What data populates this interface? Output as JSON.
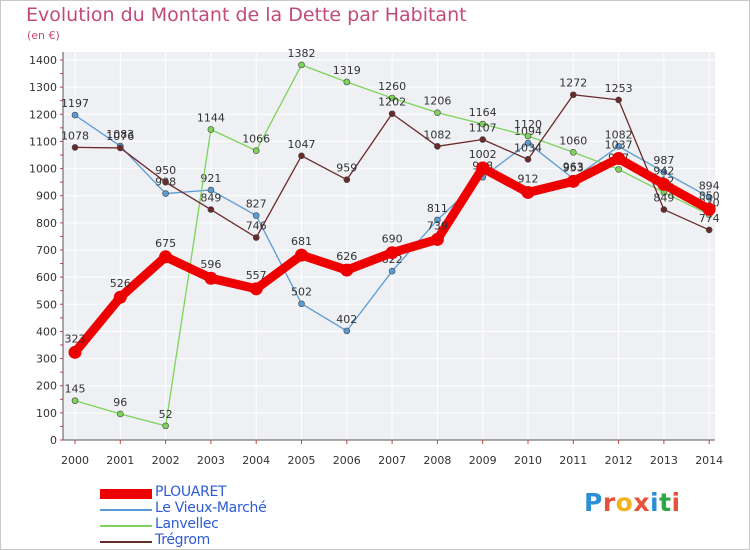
{
  "title": "Evolution du Montant de la Dette par Habitant",
  "unit_label": "(en €)",
  "logo": {
    "text": "Proxiti",
    "letter_colors": [
      "#2c8fd6",
      "#e8523a",
      "#f2b21c",
      "#e8523a",
      "#2c8fd6",
      "#2fa843",
      "#e8523a"
    ]
  },
  "chart_data": {
    "type": "line",
    "title": "Evolution du Montant de la Dette par Habitant",
    "ylabel": "(en €)",
    "xlabel": "",
    "x": [
      "2000",
      "2001",
      "2002",
      "2003",
      "2004",
      "2005",
      "2006",
      "2007",
      "2008",
      "2009",
      "2010",
      "2011",
      "2012",
      "2013",
      "2014"
    ],
    "ylim": [
      0,
      1400
    ],
    "yticks": [
      0,
      100,
      200,
      300,
      400,
      500,
      600,
      700,
      800,
      900,
      1000,
      1100,
      1200,
      1300,
      1400
    ],
    "grid": true,
    "legend_position": "bottom-left",
    "series": [
      {
        "name": "Le Vieux-Marché",
        "color": "#5b9bd5",
        "values": [
          1197,
          1083,
          908,
          921,
          827,
          502,
          402,
          622,
          811,
          968,
          1094,
          963,
          1082,
          987,
          894
        ]
      },
      {
        "name": "Lanvellec",
        "color": "#7ed35a",
        "values": [
          145,
          96,
          52,
          1144,
          1066,
          1382,
          1319,
          1260,
          1206,
          1164,
          1120,
          1060,
          997,
          912,
          830
        ]
      },
      {
        "name": "Trégrom",
        "color": "#6b2a2a",
        "values": [
          1078,
          1076,
          950,
          849,
          746,
          1047,
          959,
          1202,
          1082,
          1107,
          1034,
          1272,
          1253,
          849,
          774
        ]
      },
      {
        "name": "PLOUARET",
        "color": "#ee0000",
        "values": [
          323,
          526,
          675,
          596,
          557,
          681,
          626,
          690,
          739,
          1002,
          912,
          953,
          1037,
          942,
          850
        ]
      }
    ]
  }
}
